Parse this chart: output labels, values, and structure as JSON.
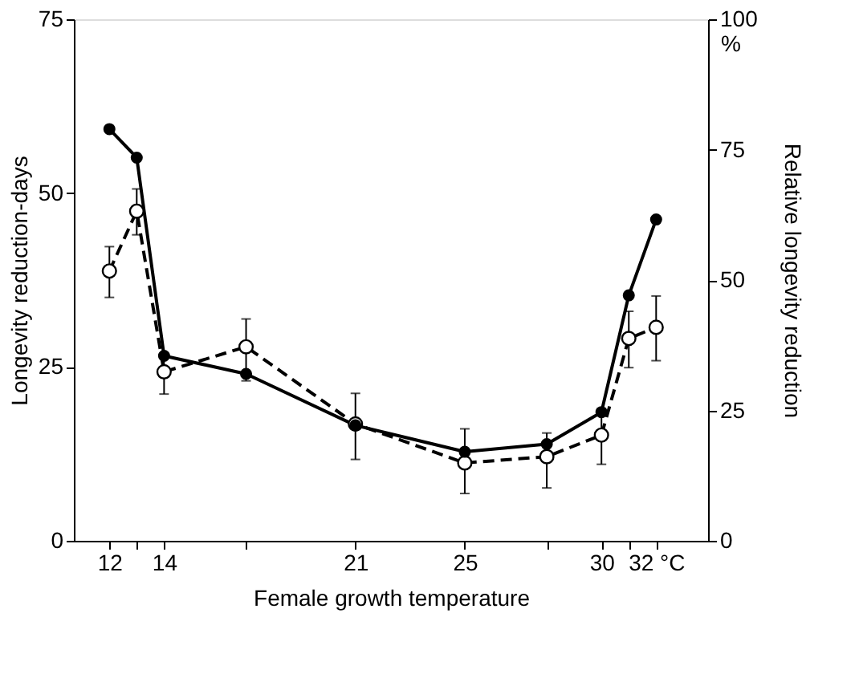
{
  "chart_data": {
    "type": "line",
    "xlabel": "Female growth temperature",
    "ylabel": "Longevity reduction-days",
    "y2label": "Relative longevity reduction",
    "annotations": [
      "%"
    ],
    "xlim": [
      10.7,
      33.9
    ],
    "xticks": [
      12,
      {
        "value": 13,
        "label": null
      },
      14,
      {
        "value": 17,
        "label": null
      },
      21,
      25,
      {
        "value": 28,
        "label": null
      },
      30,
      {
        "value": 31,
        "label": null
      },
      {
        "value": 32,
        "label": "32 °C"
      }
    ],
    "ylim": [
      0,
      75
    ],
    "yticks": [
      0,
      25,
      50,
      75
    ],
    "y2lim": [
      0,
      100
    ],
    "y2ticks": [
      0,
      25,
      50,
      75,
      100
    ],
    "grid": false,
    "marker": "circle",
    "x": [
      12,
      13,
      14,
      17,
      21,
      25,
      28,
      30,
      31,
      32
    ],
    "series": [
      {
        "color": "#000000",
        "line_style": "solid",
        "values": [
          59.2,
          55.1,
          26.6,
          24.0,
          16.6,
          12.8,
          13.9,
          18.5,
          35.3,
          46.2
        ]
      },
      {
        "color": "#000000",
        "line_style": "dashed",
        "values": [
          38.8,
          47.4,
          24.3,
          27.9,
          16.8,
          11.2,
          12.1,
          15.2,
          29.1,
          30.7
        ],
        "errors": [
          [
            35.0,
            42.3
          ],
          [
            44.0,
            50.6
          ],
          [
            21.1,
            27.0
          ],
          [
            23.0,
            31.9
          ],
          [
            11.7,
            21.2
          ],
          [
            6.8,
            16.1
          ],
          [
            7.6,
            15.5
          ],
          [
            11.0,
            19.0
          ],
          [
            24.9,
            33.0
          ],
          [
            25.9,
            35.2
          ]
        ]
      }
    ]
  }
}
